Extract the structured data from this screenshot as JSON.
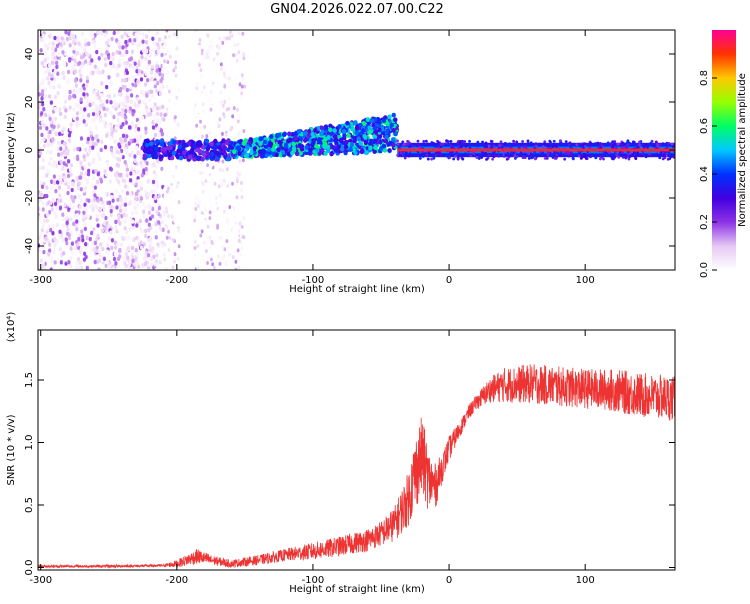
{
  "title": "GN04.2026.022.07.00.C22",
  "chart_data": [
    {
      "type": "heatmap",
      "xlabel": "Height of straight line (km)",
      "ylabel": "Frequency (Hz)",
      "xlim": [
        -302,
        166
      ],
      "ylim": [
        -50,
        50
      ],
      "xticks": [
        -300,
        -200,
        -100,
        0,
        100
      ],
      "yticks": [
        -40,
        -20,
        0,
        20,
        40
      ],
      "colorbar": {
        "label": "Normalized spectral amplitude",
        "range": [
          0.0,
          1.0
        ],
        "ticks": [
          "0.0",
          "0.2",
          "0.4",
          "0.6",
          "0.8"
        ],
        "colors": [
          "#ffffff",
          "#e6c8f4",
          "#8c32e6",
          "#4000e0",
          "#0032ff",
          "#00c8ff",
          "#00ff64",
          "#96ff00",
          "#ffc800",
          "#ff3200",
          "#ff0096"
        ]
      },
      "regions": [
        {
          "x": [
            -302,
            -210
          ],
          "pattern": "broadband scattered",
          "freq_range": [
            -50,
            50
          ],
          "amplitude": [
            0.02,
            0.2
          ]
        },
        {
          "x": [
            -210,
            -150
          ],
          "pattern": "scattered with gaps",
          "freq_range": [
            -50,
            50
          ],
          "amplitude": [
            0.0,
            0.15
          ]
        },
        {
          "x": [
            -225,
            -160
          ],
          "pattern": "narrow band",
          "freq_center": 0,
          "freq_halfwidth": 4,
          "amplitude": [
            0.2,
            0.45
          ]
        },
        {
          "x": [
            -160,
            -38
          ],
          "pattern": "rising band",
          "freq_center": [
            0,
            7
          ],
          "freq_halfwidth": 6,
          "amplitude": [
            0.25,
            0.6
          ]
        },
        {
          "x": [
            -38,
            166
          ],
          "pattern": "stable carrier line",
          "freq_center": 0,
          "freq_halfwidth": 3,
          "amplitude": [
            0.85,
            1.0
          ]
        }
      ]
    },
    {
      "type": "line",
      "xlabel": "Height of straight line (km)",
      "ylabel": "SNR (10 * v/v)",
      "scale_label": "(x10⁴)",
      "xlim": [
        -302,
        166
      ],
      "ylim": [
        -0.02,
        1.9
      ],
      "xticks": [
        -300,
        -200,
        -100,
        0,
        100
      ],
      "yticks": [
        "0.0",
        "0.5",
        "1.0",
        "1.5"
      ],
      "color": "#ee3333",
      "x": [
        -300,
        -250,
        -210,
        -200,
        -185,
        -175,
        -160,
        -140,
        -120,
        -100,
        -80,
        -60,
        -50,
        -40,
        -35,
        -30,
        -25,
        -20,
        -15,
        -10,
        -5,
        0,
        5,
        10,
        15,
        20,
        30,
        40,
        60,
        80,
        100,
        120,
        140,
        166
      ],
      "values": [
        0.01,
        0.01,
        0.015,
        0.03,
        0.09,
        0.06,
        0.03,
        0.06,
        0.1,
        0.13,
        0.17,
        0.22,
        0.27,
        0.35,
        0.45,
        0.55,
        0.75,
        0.9,
        0.7,
        0.65,
        0.8,
        0.95,
        1.05,
        1.15,
        1.25,
        1.32,
        1.42,
        1.46,
        1.47,
        1.45,
        1.43,
        1.42,
        1.38,
        1.35
      ],
      "noise_amplitude": [
        0.01,
        0.01,
        0.01,
        0.03,
        0.06,
        0.04,
        0.03,
        0.04,
        0.05,
        0.07,
        0.08,
        0.09,
        0.1,
        0.14,
        0.18,
        0.22,
        0.3,
        0.32,
        0.25,
        0.18,
        0.12,
        0.1,
        0.08,
        0.06,
        0.06,
        0.06,
        0.1,
        0.14,
        0.16,
        0.16,
        0.16,
        0.17,
        0.18,
        0.18
      ]
    }
  ]
}
